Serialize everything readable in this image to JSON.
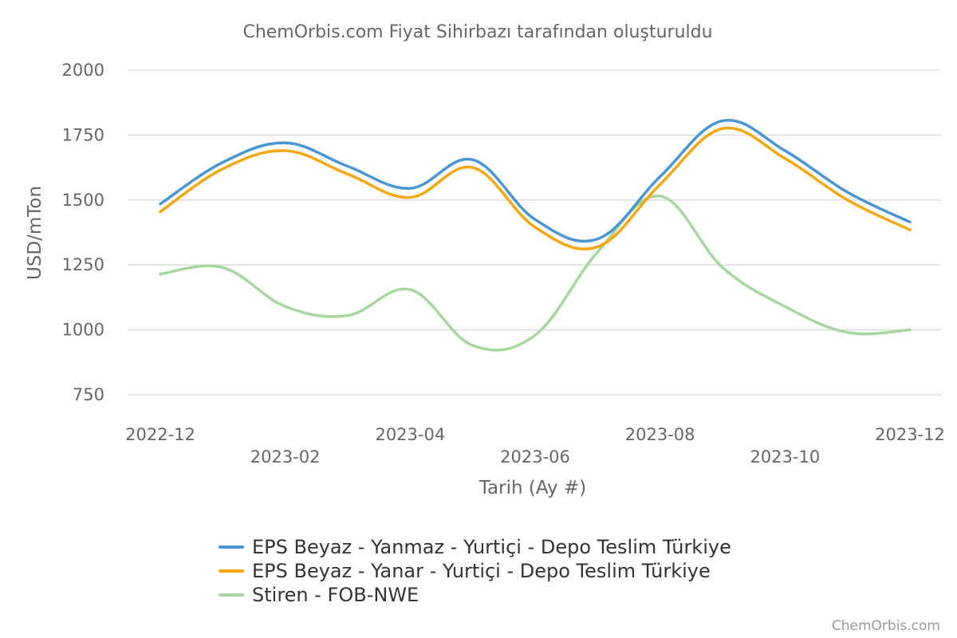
{
  "chart_data": {
    "type": "line",
    "title": "ChemOrbis.com Fiyat Sihirbazı tarafından oluşturuldu",
    "xlabel": "Tarih (Ay #)",
    "ylabel": "USD/mTon",
    "ylim": [
      750,
      2000
    ],
    "yticks": [
      750,
      1000,
      1250,
      1500,
      1750,
      2000
    ],
    "grid": true,
    "legend_position": "bottom",
    "credit": "ChemOrbis.com",
    "x": [
      "2022-12",
      "2023-01",
      "2023-02",
      "2023-03",
      "2023-04",
      "2023-05",
      "2023-06",
      "2023-07",
      "2023-08",
      "2023-09",
      "2023-10",
      "2023-11",
      "2023-12"
    ],
    "xtick_labels": [
      "2022-12",
      "2023-02",
      "2023-04",
      "2023-06",
      "2023-08",
      "2023-10",
      "2023-12"
    ],
    "series": [
      {
        "name": "EPS Beyaz - Yanmaz - Yurtiçi  - Depo Teslim Türkiye",
        "color": "#4a96d2",
        "values": [
          1485,
          1645,
          1720,
          1630,
          1545,
          1655,
          1425,
          1350,
          1590,
          1805,
          1690,
          1530,
          1415
        ]
      },
      {
        "name": "EPS Beyaz - Yanar - Yurtiçi  - Depo Teslim Türkiye",
        "color": "#f5a70f",
        "values": [
          1455,
          1620,
          1690,
          1600,
          1510,
          1625,
          1395,
          1320,
          1560,
          1775,
          1660,
          1500,
          1385
        ]
      },
      {
        "name": "Stiren - FOB-NWE",
        "color": "#a5d79f",
        "values": [
          1215,
          1240,
          1090,
          1055,
          1155,
          940,
          980,
          1300,
          1515,
          1240,
          1090,
          990,
          1000
        ]
      }
    ]
  }
}
